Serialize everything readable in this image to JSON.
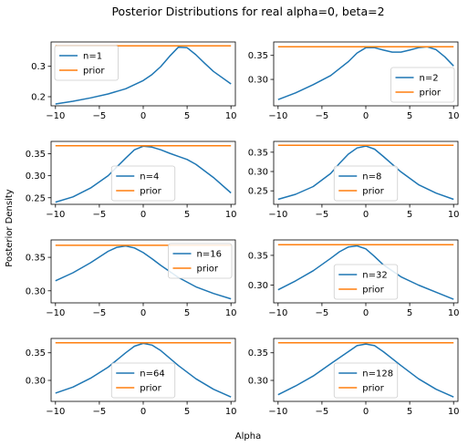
{
  "figure": {
    "title": "Posterior Distributions for real alpha=0, beta=2",
    "xlabel": "Alpha",
    "ylabel": "Posterior Density"
  },
  "colors": {
    "posterior": "#1f77b4",
    "prior": "#ff7f0e"
  },
  "chart_data": [
    {
      "type": "line",
      "legend_position": "upper left",
      "xlim": [
        -10.5,
        10.5
      ],
      "ylim": [
        0.17,
        0.38
      ],
      "xticks": [
        -10,
        -5,
        0,
        5,
        10
      ],
      "yticks": [
        0.2,
        0.3
      ],
      "series": [
        {
          "name": "n=1",
          "x": [
            -10,
            -8,
            -6,
            -4,
            -2,
            0,
            1,
            2,
            3,
            4,
            5,
            6,
            7,
            8,
            10
          ],
          "y": [
            0.176,
            0.185,
            0.196,
            0.209,
            0.226,
            0.253,
            0.273,
            0.299,
            0.333,
            0.363,
            0.361,
            0.338,
            0.31,
            0.283,
            0.242
          ]
        },
        {
          "name": "prior",
          "x": [
            -10,
            10
          ],
          "y": [
            0.367,
            0.367
          ]
        }
      ]
    },
    {
      "type": "line",
      "legend_position": "lower right",
      "xlim": [
        -10.5,
        10.5
      ],
      "ylim": [
        0.245,
        0.378
      ],
      "xticks": [
        -10,
        -5,
        0,
        5,
        10
      ],
      "yticks": [
        0.3,
        0.35
      ],
      "series": [
        {
          "name": "n=2",
          "x": [
            -10,
            -8,
            -6,
            -4,
            -2,
            -1,
            0,
            1,
            2,
            3,
            4,
            5,
            6,
            7,
            8,
            9,
            10
          ],
          "y": [
            0.258,
            0.272,
            0.289,
            0.308,
            0.337,
            0.355,
            0.366,
            0.366,
            0.361,
            0.357,
            0.357,
            0.361,
            0.366,
            0.368,
            0.362,
            0.347,
            0.328
          ]
        },
        {
          "name": "prior",
          "x": [
            -10,
            10
          ],
          "y": [
            0.368,
            0.368
          ]
        }
      ]
    },
    {
      "type": "line",
      "legend_position": "lower center",
      "xlim": [
        -10.5,
        10.5
      ],
      "ylim": [
        0.235,
        0.378
      ],
      "xticks": [
        -10,
        -5,
        0,
        5,
        10
      ],
      "yticks": [
        0.25,
        0.3,
        0.35
      ],
      "series": [
        {
          "name": "n=4",
          "x": [
            -10,
            -8,
            -6,
            -4,
            -2,
            -1,
            0,
            1,
            2,
            3,
            4,
            5,
            6,
            8,
            10
          ],
          "y": [
            0.24,
            0.252,
            0.272,
            0.3,
            0.34,
            0.359,
            0.367,
            0.365,
            0.359,
            0.351,
            0.344,
            0.337,
            0.326,
            0.296,
            0.261
          ]
        },
        {
          "name": "prior",
          "x": [
            -10,
            10
          ],
          "y": [
            0.368,
            0.368
          ]
        }
      ]
    },
    {
      "type": "line",
      "legend_position": "lower center",
      "xlim": [
        -10.5,
        10.5
      ],
      "ylim": [
        0.215,
        0.378
      ],
      "xticks": [
        -10,
        -5,
        0,
        5,
        10
      ],
      "yticks": [
        0.25,
        0.3,
        0.35
      ],
      "series": [
        {
          "name": "n=8",
          "x": [
            -10,
            -8,
            -6,
            -4,
            -3,
            -2,
            -1,
            0,
            1,
            2,
            4,
            6,
            8,
            10
          ],
          "y": [
            0.228,
            0.241,
            0.261,
            0.295,
            0.321,
            0.345,
            0.361,
            0.366,
            0.358,
            0.339,
            0.299,
            0.266,
            0.244,
            0.228
          ]
        },
        {
          "name": "prior",
          "x": [
            -10,
            10
          ],
          "y": [
            0.368,
            0.368
          ]
        }
      ]
    },
    {
      "type": "line",
      "legend_position": "upper right",
      "xlim": [
        -10.5,
        10.5
      ],
      "ylim": [
        0.282,
        0.376
      ],
      "xticks": [
        -10,
        -5,
        0,
        5,
        10
      ],
      "yticks": [
        0.3,
        0.35
      ],
      "series": [
        {
          "name": "n=16",
          "x": [
            -10,
            -8,
            -6,
            -4,
            -3,
            -2,
            -1,
            0,
            1,
            2,
            4,
            6,
            8,
            10
          ],
          "y": [
            0.315,
            0.327,
            0.342,
            0.359,
            0.365,
            0.367,
            0.364,
            0.357,
            0.348,
            0.338,
            0.32,
            0.306,
            0.296,
            0.288
          ]
        },
        {
          "name": "prior",
          "x": [
            -10,
            10
          ],
          "y": [
            0.368,
            0.368
          ]
        }
      ]
    },
    {
      "type": "line",
      "legend_position": "lower center",
      "xlim": [
        -10.5,
        10.5
      ],
      "ylim": [
        0.27,
        0.376
      ],
      "xticks": [
        -10,
        -5,
        0,
        5,
        10
      ],
      "yticks": [
        0.3,
        0.35
      ],
      "series": [
        {
          "name": "n=32",
          "x": [
            -10,
            -8,
            -6,
            -4,
            -3,
            -2,
            -1,
            0,
            1,
            2,
            4,
            6,
            8,
            10
          ],
          "y": [
            0.292,
            0.307,
            0.324,
            0.345,
            0.356,
            0.364,
            0.366,
            0.361,
            0.348,
            0.334,
            0.314,
            0.3,
            0.288,
            0.276
          ]
        },
        {
          "name": "prior",
          "x": [
            -10,
            10
          ],
          "y": [
            0.368,
            0.368
          ]
        }
      ]
    },
    {
      "type": "line",
      "legend_position": "lower center",
      "xlim": [
        -10.5,
        10.5
      ],
      "ylim": [
        0.262,
        0.376
      ],
      "xticks": [
        -10,
        -5,
        0,
        5,
        10
      ],
      "yticks": [
        0.3,
        0.35
      ],
      "series": [
        {
          "name": "n=64",
          "x": [
            -10,
            -8,
            -6,
            -4,
            -2,
            -1,
            0,
            1,
            2,
            4,
            6,
            8,
            10
          ],
          "y": [
            0.277,
            0.288,
            0.304,
            0.324,
            0.35,
            0.362,
            0.367,
            0.364,
            0.354,
            0.327,
            0.303,
            0.284,
            0.27
          ]
        },
        {
          "name": "prior",
          "x": [
            -10,
            10
          ],
          "y": [
            0.368,
            0.368
          ]
        }
      ]
    },
    {
      "type": "line",
      "legend_position": "lower center",
      "xlim": [
        -10.5,
        10.5
      ],
      "ylim": [
        0.262,
        0.376
      ],
      "xticks": [
        -10,
        -5,
        0,
        5,
        10
      ],
      "yticks": [
        0.3,
        0.35
      ],
      "series": [
        {
          "name": "n=128",
          "x": [
            -10,
            -8,
            -6,
            -4,
            -2,
            -1,
            0,
            1,
            2,
            4,
            6,
            8,
            10
          ],
          "y": [
            0.274,
            0.29,
            0.308,
            0.33,
            0.352,
            0.363,
            0.366,
            0.363,
            0.352,
            0.327,
            0.303,
            0.284,
            0.27
          ]
        },
        {
          "name": "prior",
          "x": [
            -10,
            10
          ],
          "y": [
            0.368,
            0.368
          ]
        }
      ]
    }
  ]
}
